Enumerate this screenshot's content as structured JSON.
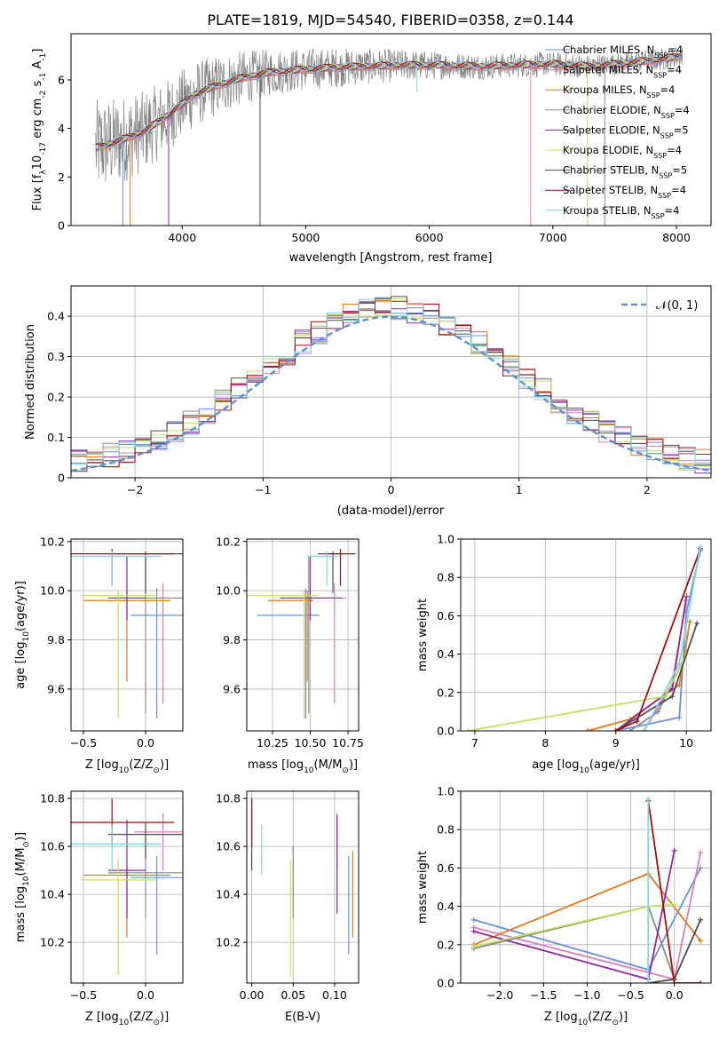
{
  "figure_title": "PLATE=1819, MJD=54540, FIBERID=0358, z=0.144",
  "colors": {
    "Chabrier MILES": "#6a8fde",
    "Salpeter MILES": "#e07bbf",
    "Kroupa MILES": "#e07b1c",
    "Chabrier ELODIE": "#8a8a8a",
    "Salpeter ELODIE": "#8e27a0",
    "Kroupa ELODIE": "#c4e060",
    "Chabrier STELIB": "#4d4d4d",
    "Salpeter STELIB": "#a31010",
    "Kroupa STELIB": "#82d6e0",
    "normal_curve": "#5b8fd6"
  },
  "chart_data": [
    {
      "id": "spectrum",
      "type": "line",
      "xlabel": "wavelength [Angstrom, rest frame]",
      "ylabel_parts": [
        "Flux [f",
        "λ",
        "10",
        "-17",
        " erg cm",
        "-2",
        " s",
        "-1",
        " A",
        "-1",
        "]"
      ],
      "xlim": [
        3100,
        8280
      ],
      "ylim": [
        0,
        7.9
      ],
      "xticks": [
        4000,
        5000,
        6000,
        7000,
        8000
      ],
      "yticks": [
        0,
        2,
        4,
        6
      ],
      "legend_position": "right",
      "legend": [
        {
          "label": "Chabrier MILES, N",
          "sub": "SSP",
          "suffix": "=4"
        },
        {
          "label": "Salpeter MILES, N",
          "sub": "SSP",
          "suffix": "=4"
        },
        {
          "label": "Kroupa MILES, N",
          "sub": "SSP",
          "suffix": "=4"
        },
        {
          "label": "Chabrier ELODIE, N",
          "sub": "SSP",
          "suffix": "=4"
        },
        {
          "label": "Salpeter ELODIE, N",
          "sub": "SSP",
          "suffix": "=5"
        },
        {
          "label": "Kroupa ELODIE, N",
          "sub": "SSP",
          "suffix": "=4"
        },
        {
          "label": "Chabrier STELIB, N",
          "sub": "SSP",
          "suffix": "=5"
        },
        {
          "label": "Salpeter STELIB, N",
          "sub": "SSP",
          "suffix": "=4"
        },
        {
          "label": "Kroupa STELIB, N",
          "sub": "SSP",
          "suffix": "=4"
        }
      ],
      "continuum": {
        "x": [
          3300,
          3500,
          3700,
          3900,
          4100,
          4300,
          4500,
          4700,
          4900,
          5200,
          5500,
          5800,
          6100,
          6400,
          6700,
          7000,
          7300,
          7600,
          7900,
          8050
        ],
        "y": [
          3.2,
          3.5,
          3.9,
          4.6,
          5.4,
          5.8,
          6.1,
          6.3,
          6.4,
          6.5,
          6.55,
          6.6,
          6.6,
          6.55,
          6.6,
          6.65,
          6.55,
          6.7,
          6.85,
          7.0
        ]
      },
      "data_noise_amplitude": [
        2.5,
        2.0,
        1.2,
        0.7,
        0.55
      ],
      "spikes": [
        {
          "x": 3520,
          "y": 0
        },
        {
          "x": 3580,
          "y": 0
        },
        {
          "x": 3890,
          "y": 0
        },
        {
          "x": 4630,
          "y": 0
        },
        {
          "x": 5900,
          "y": 5.5
        },
        {
          "x": 6820,
          "y": 0
        },
        {
          "x": 7420,
          "y": 0
        },
        {
          "x": 7280,
          "y": 0
        }
      ]
    },
    {
      "id": "residuals",
      "type": "line",
      "xlabel": "(data-model)/error",
      "ylabel": "Normed distribution",
      "xlim": [
        -2.5,
        2.5
      ],
      "ylim": [
        0,
        0.475
      ],
      "xticks": [
        -2,
        -1,
        0,
        1,
        2
      ],
      "xtick_labels": [
        "−2",
        "−1",
        "0",
        "1",
        "2"
      ],
      "yticks": [
        0.0,
        0.1,
        0.2,
        0.3,
        0.4
      ],
      "grid": true,
      "legend_position": "top-right",
      "normal_legend": "𝒩(0, 1)",
      "bins": 40
    },
    {
      "id": "age_vs_Z",
      "type": "scatter",
      "xlabel_parts": [
        "Z [log",
        "10",
        "(Z/Z",
        "⊙",
        ")]"
      ],
      "ylabel_parts": [
        "age  [log",
        "10",
        "(age/yr)]"
      ],
      "xlim": [
        -0.6,
        0.3
      ],
      "ylim": [
        9.43,
        10.21
      ],
      "xticks": [
        -0.5,
        0.0
      ],
      "xtick_labels": [
        "−0.5",
        "0.0"
      ],
      "yticks": [
        9.6,
        9.8,
        10.0,
        10.2
      ],
      "ytick_labels": [
        "9.6",
        "9.8",
        "10.0",
        "10.2"
      ],
      "grid": true
    },
    {
      "id": "age_vs_mass",
      "type": "scatter",
      "xlabel_parts": [
        "mass [log",
        "10",
        "(M/M",
        "⊙",
        ")]"
      ],
      "xlim": [
        10.08,
        10.82
      ],
      "ylim": [
        9.43,
        10.21
      ],
      "xticks": [
        10.25,
        10.5,
        10.75
      ],
      "xtick_labels": [
        "10.25",
        "10.50",
        "10.75"
      ],
      "yticks": [
        9.6,
        9.8,
        10.0,
        10.2
      ],
      "ytick_labels": [
        "9.6",
        "9.8",
        "10.0",
        "10.2"
      ],
      "grid": true
    },
    {
      "id": "weight_vs_age",
      "type": "line",
      "xlabel_parts": [
        "age  [log",
        "10",
        "(age/yr)]"
      ],
      "ylabel": "mass weight",
      "xlim": [
        6.8,
        10.35
      ],
      "ylim": [
        0,
        1
      ],
      "xticks": [
        7,
        8,
        9,
        10
      ],
      "yticks": [
        0.0,
        0.2,
        0.4,
        0.6,
        0.8,
        1.0
      ],
      "ytick_labels": [
        "0.0",
        "0.2",
        "0.4",
        "0.6",
        "0.8",
        "1.0"
      ],
      "grid": true
    },
    {
      "id": "mass_vs_Z",
      "type": "scatter",
      "xlabel_parts": [
        "Z [log",
        "10",
        "(Z/Z",
        "⊙",
        ")]"
      ],
      "ylabel_parts": [
        "mass [log",
        "10",
        "(M/M",
        "⊙",
        ")]"
      ],
      "xlim": [
        -0.6,
        0.3
      ],
      "ylim": [
        10.03,
        10.83
      ],
      "xticks": [
        -0.5,
        0.0
      ],
      "xtick_labels": [
        "−0.5",
        "0.0"
      ],
      "yticks": [
        10.2,
        10.4,
        10.6,
        10.8
      ],
      "ytick_labels": [
        "10.2",
        "10.4",
        "10.6",
        "10.8"
      ],
      "grid": true
    },
    {
      "id": "mass_vs_ebv",
      "type": "scatter",
      "xlabel": "E(B-V)",
      "xlim": [
        -0.006,
        0.129
      ],
      "ylim": [
        10.03,
        10.83
      ],
      "xticks": [
        0.0,
        0.05,
        0.1
      ],
      "xtick_labels": [
        "0.00",
        "0.05",
        "0.10"
      ],
      "yticks": [
        10.2,
        10.4,
        10.6,
        10.8
      ],
      "ytick_labels": [
        "10.2",
        "10.4",
        "10.6",
        "10.8"
      ],
      "grid": true
    },
    {
      "id": "weight_vs_Z",
      "type": "line",
      "xlabel_parts": [
        "Z [log",
        "10",
        "(Z/Z",
        "⊙",
        ")]"
      ],
      "ylabel": "mass weight",
      "xlim": [
        -2.45,
        0.42
      ],
      "ylim": [
        0,
        1
      ],
      "xticks": [
        -2.0,
        -1.5,
        -1.0,
        -0.5,
        0.0
      ],
      "xtick_labels": [
        "−2.0",
        "−1.5",
        "−1.0",
        "−0.5",
        "0.0"
      ],
      "yticks": [
        0.0,
        0.2,
        0.4,
        0.6,
        0.8,
        1.0
      ],
      "ytick_labels": [
        "0.0",
        "0.2",
        "0.4",
        "0.6",
        "0.8",
        "1.0"
      ],
      "grid": true
    }
  ],
  "models": [
    {
      "name": "Chabrier MILES",
      "Z": 0.09,
      "Zerr": 0.21,
      "age": 9.9,
      "age_lo": 9.48,
      "age_hi": 10.01,
      "mass": 10.47,
      "mlo": 10.15,
      "mhi": 10.56,
      "ebv": 0.117,
      "elo": 10.15,
      "ehi": 10.56,
      "weights_age": [
        [
          9.0,
          0.0
        ],
        [
          9.9,
          0.07
        ],
        [
          10.0,
          0.62
        ],
        [
          10.2,
          0.94
        ]
      ],
      "weights_Z": [
        [
          -2.3,
          0.33
        ],
        [
          -0.3,
          0.07
        ],
        [
          0.3,
          0.6
        ]
      ]
    },
    {
      "name": "Salpeter MILES",
      "Z": 0.14,
      "Zerr": 0.23,
      "age": 9.97,
      "age_lo": 9.54,
      "age_hi": 10.03,
      "mass": 10.66,
      "mlo": 10.5,
      "mhi": 10.74,
      "ebv": 0.103,
      "elo": 10.52,
      "ehi": 10.74,
      "weights_age": [
        [
          9.4,
          0.0
        ],
        [
          9.8,
          0.25
        ],
        [
          10.0,
          0.68
        ]
      ],
      "weights_Z": [
        [
          -2.3,
          0.29
        ],
        [
          0.0,
          0.02
        ],
        [
          0.3,
          0.68
        ]
      ]
    },
    {
      "name": "Kroupa MILES",
      "Z": -0.15,
      "Zerr": 0.35,
      "age": 9.96,
      "age_lo": 9.63,
      "age_hi": 10.0,
      "mass": 10.48,
      "mlo": 10.22,
      "mhi": 10.52,
      "ebv": 0.122,
      "elo": 10.22,
      "ehi": 10.58,
      "weights_age": [
        [
          8.6,
          0.0
        ],
        [
          9.2,
          0.06
        ],
        [
          9.9,
          0.24
        ],
        [
          10.05,
          0.57
        ]
      ],
      "weights_Z": [
        [
          -2.3,
          0.2
        ],
        [
          -0.3,
          0.57
        ],
        [
          0.3,
          0.22
        ]
      ]
    },
    {
      "name": "Chabrier ELODIE",
      "Z": 0.0,
      "Zerr": 0.3,
      "age": 9.97,
      "age_lo": 9.5,
      "age_hi": 10.14,
      "mass": 10.49,
      "mlo": 10.3,
      "mhi": 10.65,
      "ebv": 0.05,
      "elo": 10.3,
      "ehi": 10.6,
      "weights_age": [
        [
          9.2,
          0.0
        ],
        [
          9.6,
          0.1
        ],
        [
          10.0,
          0.4
        ]
      ],
      "weights_Z": [
        [
          -2.3,
          0.18
        ],
        [
          -0.3,
          0.4
        ],
        [
          0.0,
          0.02
        ]
      ]
    },
    {
      "name": "Salpeter ELODIE",
      "Z": -0.15,
      "Zerr": 0.15,
      "age": 9.97,
      "age_lo": 9.88,
      "age_hi": 10.14,
      "mass": 10.5,
      "mlo": 10.3,
      "mhi": 10.71,
      "ebv": 0.103,
      "elo": 10.32,
      "ehi": 10.73,
      "weights_age": [
        [
          9.0,
          0.0
        ],
        [
          9.8,
          0.22
        ],
        [
          10.0,
          0.7
        ]
      ],
      "weights_Z": [
        [
          -2.3,
          0.27
        ],
        [
          -0.3,
          0.02
        ],
        [
          0.0,
          0.69
        ]
      ]
    },
    {
      "name": "Kroupa ELODIE",
      "Z": -0.22,
      "Zerr": 0.3,
      "age": 9.98,
      "age_lo": 9.48,
      "age_hi": 10.0,
      "mass": 10.46,
      "mlo": 10.06,
      "mhi": 10.55,
      "ebv": 0.047,
      "elo": 10.06,
      "ehi": 10.54,
      "weights_age": [
        [
          6.9,
          0.0
        ],
        [
          9.7,
          0.18
        ],
        [
          10.0,
          0.4
        ]
      ],
      "weights_Z": [
        [
          -2.3,
          0.19
        ],
        [
          -0.3,
          0.4
        ],
        [
          0.0,
          0.41
        ]
      ]
    },
    {
      "name": "Chabrier STELIB",
      "Z": 0.0,
      "Zerr": 0.3,
      "age": 10.15,
      "age_lo": 9.99,
      "age_hi": 10.16,
      "mass": 10.65,
      "mlo": 10.55,
      "mhi": 10.7,
      "ebv": 0.0,
      "elo": 10.5,
      "ehi": 10.8,
      "weights_age": [
        [
          9.0,
          0.0
        ],
        [
          9.8,
          0.18
        ],
        [
          10.15,
          0.56
        ]
      ],
      "weights_Z": [
        [
          -0.3,
          0.0
        ],
        [
          0.0,
          0.02
        ],
        [
          0.3,
          0.33
        ]
      ]
    },
    {
      "name": "Salpeter STELIB",
      "Z": -0.27,
      "Zerr": 0.5,
      "age": 10.15,
      "age_lo": 10.02,
      "age_hi": 10.17,
      "mass": 10.7,
      "mlo": 10.6,
      "mhi": 10.8,
      "ebv": 0.0,
      "elo": 10.6,
      "ehi": 10.8,
      "weights_age": [
        [
          9.0,
          0.0
        ],
        [
          9.3,
          0.05
        ],
        [
          10.2,
          0.95
        ]
      ],
      "weights_Z": [
        [
          -0.3,
          0.95
        ],
        [
          0.0,
          0.0
        ],
        [
          0.3,
          0.0
        ]
      ]
    },
    {
      "name": "Kroupa STELIB",
      "Z": -0.27,
      "Zerr": 0.4,
      "age": 10.14,
      "age_lo": 10.02,
      "age_hi": 10.16,
      "mass": 10.61,
      "mlo": 10.48,
      "mhi": 10.69,
      "ebv": 0.012,
      "elo": 10.48,
      "ehi": 10.69,
      "weights_age": [
        [
          9.4,
          0.0
        ],
        [
          9.9,
          0.35
        ],
        [
          10.2,
          0.96
        ]
      ],
      "weights_Z": [
        [
          -0.3,
          0.96
        ],
        [
          -0.3,
          0.0
        ]
      ]
    }
  ]
}
